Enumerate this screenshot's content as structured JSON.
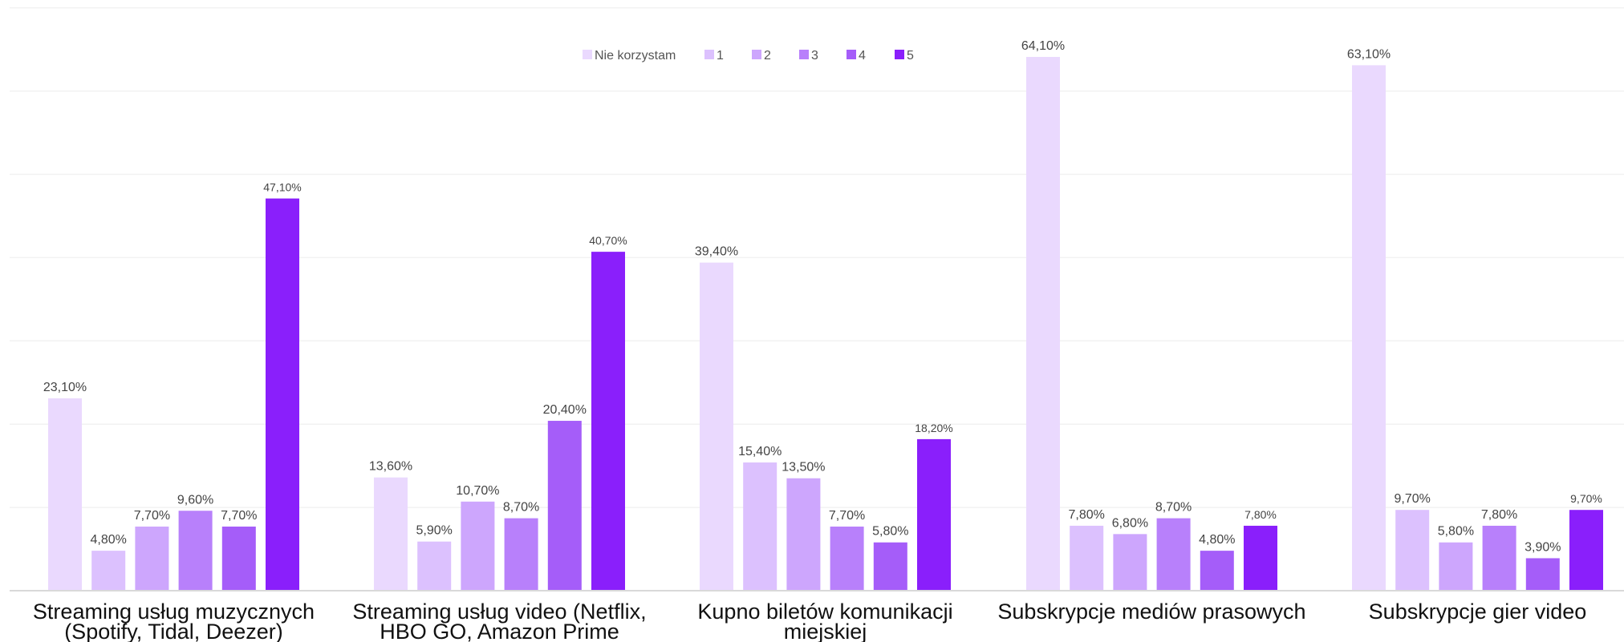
{
  "chart_data": {
    "type": "bar",
    "categories": [
      [
        "Streaming usług muzycznych",
        "(Spotify, Tidal, Deezer)"
      ],
      [
        "Streaming usług video (Netflix,",
        "HBO GO, Amazon Prime"
      ],
      [
        "Kupno biletów komunikacji",
        "miejskiej"
      ],
      [
        "Subskrypcje mediów prasowych"
      ],
      [
        "Subskrypcje gier video"
      ]
    ],
    "series": [
      {
        "name": "Nie korzystam",
        "color": "#EAD9FE",
        "values": [
          23.1,
          13.6,
          39.4,
          64.1,
          63.1
        ],
        "labels": [
          "23,10%",
          "13,60%",
          "39,40%",
          "64,10%",
          "63,10%"
        ]
      },
      {
        "name": "1",
        "color": "#DCC1FE",
        "values": [
          4.8,
          5.9,
          15.4,
          7.8,
          9.7
        ],
        "labels": [
          "4,80%",
          "5,90%",
          "15,40%",
          "7,80%",
          "9,70%"
        ]
      },
      {
        "name": "2",
        "color": "#CDA6FD",
        "values": [
          7.7,
          10.7,
          13.5,
          6.8,
          5.8
        ],
        "labels": [
          "7,70%",
          "10,70%",
          "13,50%",
          "6,80%",
          "5,80%"
        ]
      },
      {
        "name": "3",
        "color": "#B880FB",
        "values": [
          9.6,
          8.7,
          7.7,
          8.7,
          7.8
        ],
        "labels": [
          "9,60%",
          "8,70%",
          "7,70%",
          "8,70%",
          "7,80%"
        ]
      },
      {
        "name": "4",
        "color": "#A55DF9",
        "values": [
          7.7,
          20.4,
          5.8,
          4.8,
          3.9
        ],
        "labels": [
          "7,70%",
          "20,40%",
          "5,80%",
          "4,80%",
          "3,90%"
        ]
      },
      {
        "name": "5",
        "color": "#8A1FFB",
        "values": [
          47.1,
          40.7,
          18.2,
          7.8,
          9.7
        ],
        "labels": [
          "47,10%",
          "40,70%",
          "18,20%",
          "7,80%",
          "9,70%"
        ]
      }
    ],
    "ylim": [
      0,
      70
    ],
    "grid": true,
    "legend": "top-center",
    "title": "",
    "xlabel": "",
    "ylabel": ""
  }
}
